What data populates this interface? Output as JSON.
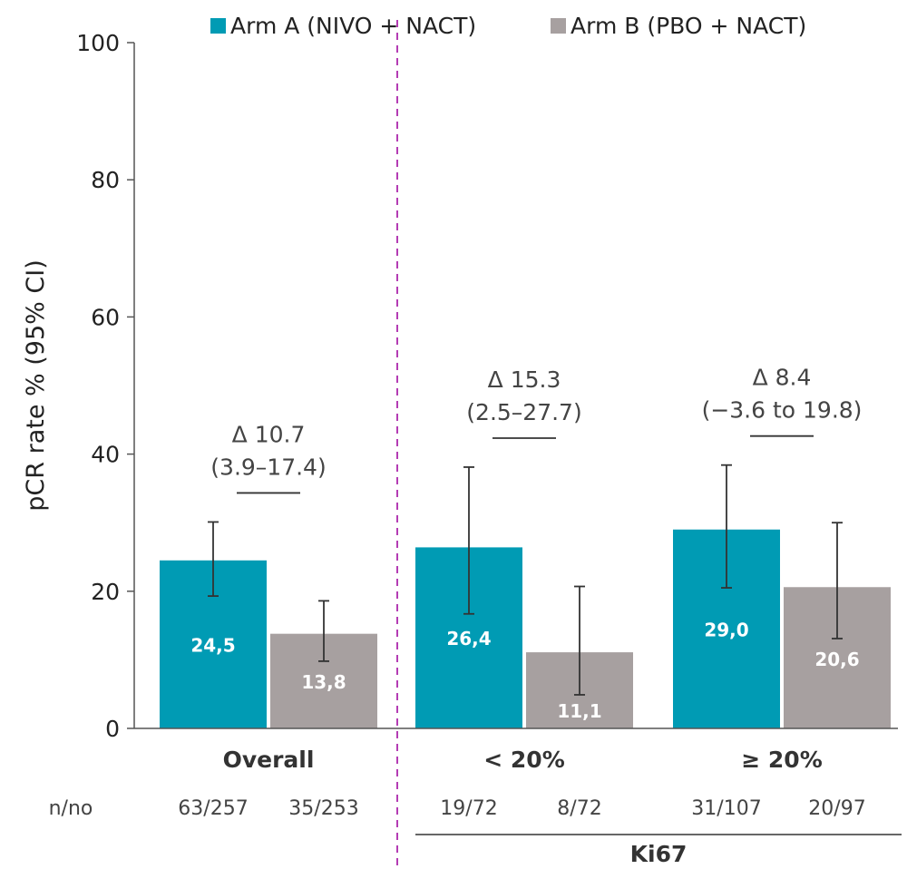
{
  "chart_data": {
    "type": "bar",
    "ylabel": "pCR rate % (95% CI)",
    "ylim": [
      0,
      100
    ],
    "yticks": [
      0,
      20,
      40,
      60,
      80,
      100
    ],
    "grid": false,
    "legend_position": "top",
    "categories": [
      "Overall",
      "< 20%",
      "≥ 20%"
    ],
    "series": [
      {
        "name": "Arm A (NIVO + NACT)",
        "color": "#009bb4",
        "values": [
          24.5,
          26.4,
          29.0
        ],
        "value_labels": [
          "24,5",
          "26,4",
          "29,0"
        ],
        "ci_low": [
          19.3,
          16.7,
          20.5
        ],
        "ci_high": [
          30.1,
          38.1,
          38.4
        ],
        "counts": [
          "63/257",
          "19/72",
          "31/107"
        ]
      },
      {
        "name": "Arm B (PBO + NACT)",
        "color": "#a7a0a0",
        "values": [
          13.8,
          11.1,
          20.6
        ],
        "value_labels": [
          "13,8",
          "11,1",
          "20,6"
        ],
        "ci_low": [
          9.8,
          4.9,
          13.1
        ],
        "ci_high": [
          18.6,
          20.7,
          30.0
        ],
        "counts": [
          "35/253",
          "8/72",
          "20/97"
        ]
      }
    ],
    "annotations": [
      {
        "group": 0,
        "delta": "Δ 10.7",
        "ci": "(3.9–17.4)"
      },
      {
        "group": 1,
        "delta": "Δ 15.3",
        "ci": "(2.5–27.7)"
      },
      {
        "group": 2,
        "delta": "Δ 8.4",
        "ci": "(−3.6 to 19.8)"
      }
    ],
    "count_row_label": "n/no",
    "subgroup_label": "Ki67",
    "subgroup_categories": [
      1,
      2
    ],
    "divider_color": "#b43cb4"
  }
}
